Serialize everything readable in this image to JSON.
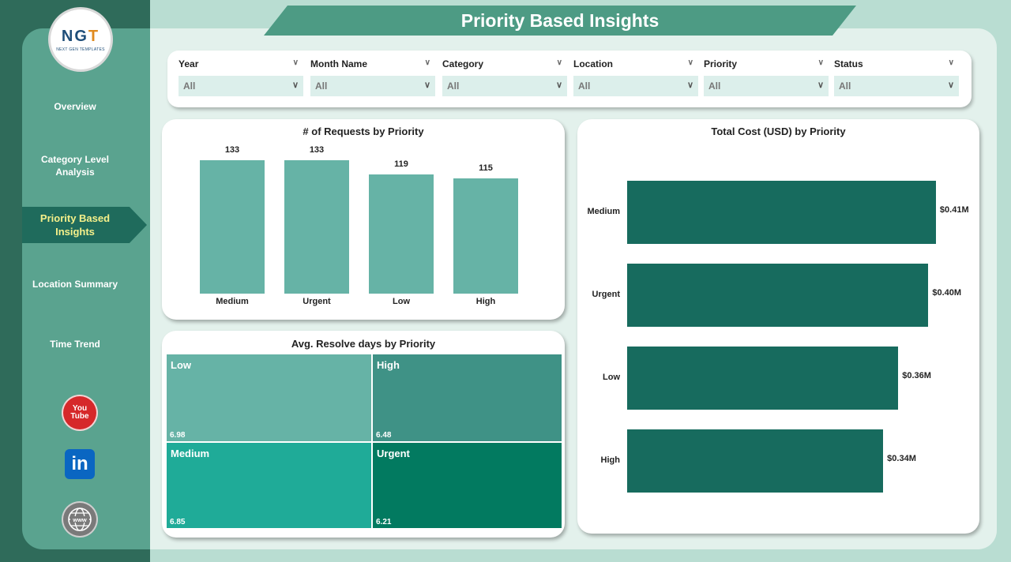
{
  "page": {
    "title": "Priority Based Insights"
  },
  "logo": {
    "mark_left": "NG",
    "mark_right": "T",
    "subtitle": "NEXT GEN TEMPLATES"
  },
  "sidebar": {
    "items": [
      {
        "label": "Overview"
      },
      {
        "label": "Category Level Analysis"
      },
      {
        "label": "Priority Based Insights"
      },
      {
        "label": "Location Summary"
      },
      {
        "label": "Time Trend"
      }
    ],
    "active_index": 2,
    "social": {
      "youtube_top": "You",
      "youtube_bottom": "Tube",
      "linkedin": "in",
      "www": "www"
    }
  },
  "filters": [
    {
      "label": "Year",
      "value": "All"
    },
    {
      "label": "Month Name",
      "value": "All"
    },
    {
      "label": "Category",
      "value": "All"
    },
    {
      "label": "Location",
      "value": "All"
    },
    {
      "label": "Priority",
      "value": "All"
    },
    {
      "label": "Status",
      "value": "All"
    }
  ],
  "colors": {
    "bar_light": "#66b3a6",
    "bar_dark": "#176b5e",
    "tile_low": "#66b3a6",
    "tile_high": "#3f9286",
    "tile_medium": "#1fab98",
    "tile_urgent": "#027a60"
  },
  "chart_data": [
    {
      "type": "bar",
      "title": "# of Requests by Priority",
      "categories": [
        "Medium",
        "Urgent",
        "Low",
        "High"
      ],
      "values": [
        133,
        133,
        119,
        115
      ],
      "value_labels": [
        "133",
        "133",
        "119",
        "115"
      ],
      "ylim": [
        0,
        140
      ]
    },
    {
      "type": "bar",
      "orientation": "horizontal",
      "title": "Total Cost (USD) by Priority",
      "categories": [
        "Medium",
        "Urgent",
        "Low",
        "High"
      ],
      "values": [
        0.41,
        0.4,
        0.36,
        0.34
      ],
      "value_labels": [
        "$0.41M",
        "$0.40M",
        "$0.36M",
        "$0.34M"
      ],
      "xlim": [
        0,
        0.43
      ]
    },
    {
      "type": "heatmap",
      "subtype": "treemap",
      "title": "Avg. Resolve days by Priority",
      "categories": [
        "Low",
        "High",
        "Medium",
        "Urgent"
      ],
      "values": [
        6.98,
        6.48,
        6.85,
        6.21
      ],
      "value_labels": [
        "6.98",
        "6.48",
        "6.85",
        "6.21"
      ]
    }
  ]
}
